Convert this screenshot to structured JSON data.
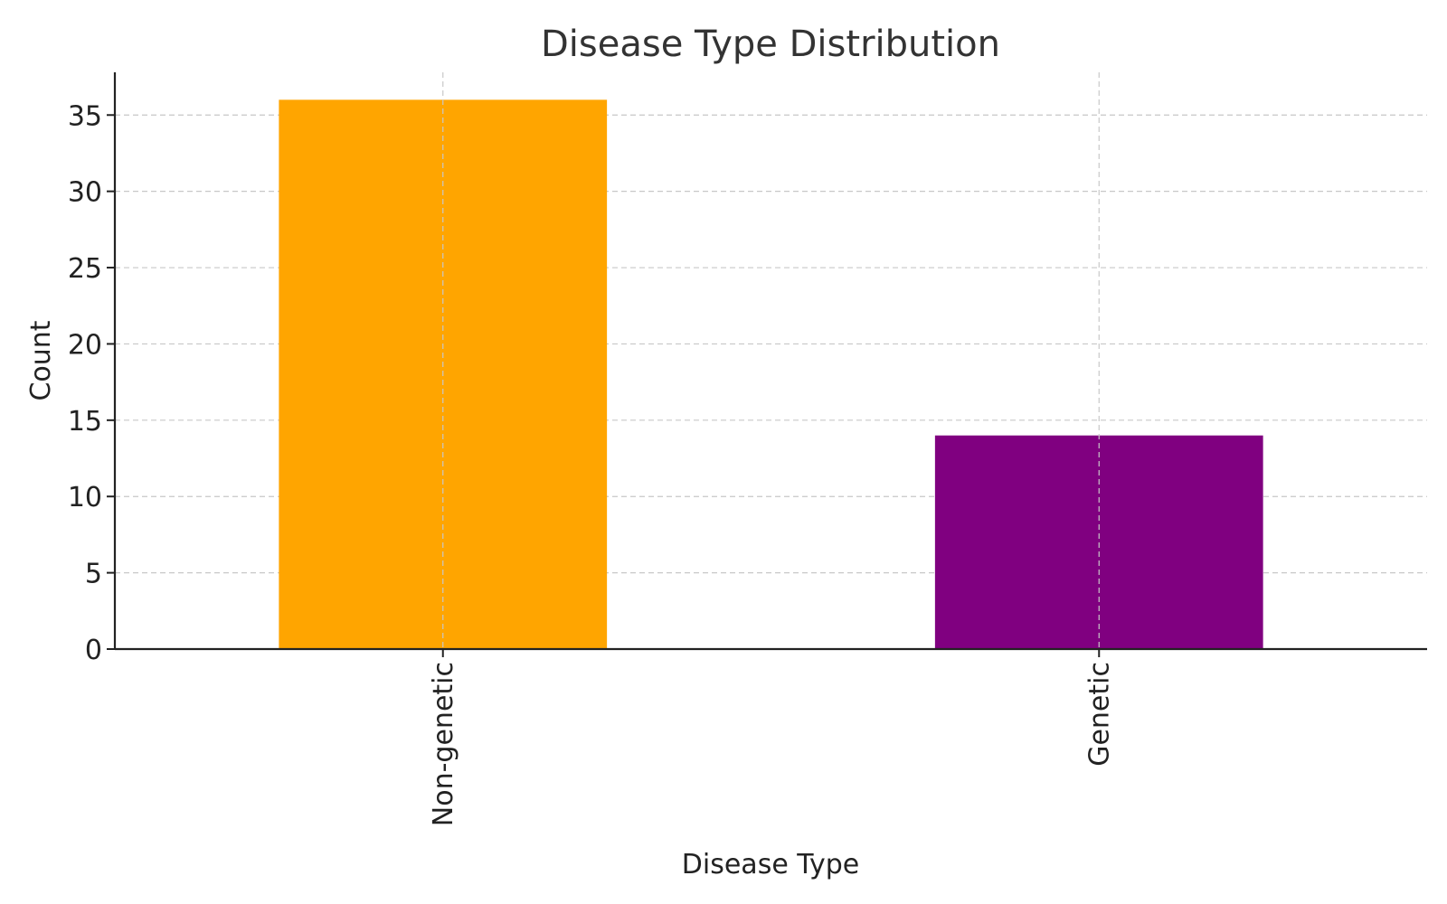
{
  "chart_data": {
    "type": "bar",
    "title": "Disease Type Distribution",
    "xlabel": "Disease Type",
    "ylabel": "Count",
    "categories": [
      "Non-genetic",
      "Genetic"
    ],
    "values": [
      36,
      14
    ],
    "colors": [
      "#FFA500",
      "#800080"
    ],
    "ylim": [
      0,
      37.8
    ],
    "yticks": [
      0,
      5,
      10,
      15,
      20,
      25,
      30,
      35
    ],
    "grid": true,
    "legend": "none"
  }
}
